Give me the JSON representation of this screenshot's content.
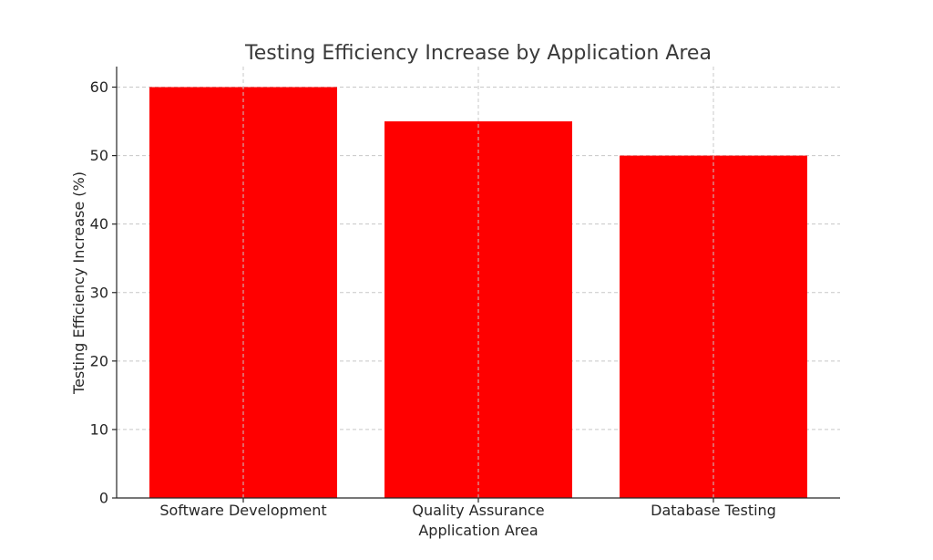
{
  "chart_data": {
    "type": "bar",
    "title": "Testing Efficiency Increase by Application Area",
    "xlabel": "Application Area",
    "ylabel": "Testing Efficiency Increase (%)",
    "categories": [
      "Software Development",
      "Quality Assurance",
      "Database Testing"
    ],
    "values": [
      60,
      55,
      50
    ],
    "ylim": [
      0,
      63
    ],
    "yticks": [
      0,
      10,
      20,
      30,
      40,
      50,
      60
    ],
    "grid": true,
    "bar_color": "#ff0000",
    "legend": "none"
  }
}
